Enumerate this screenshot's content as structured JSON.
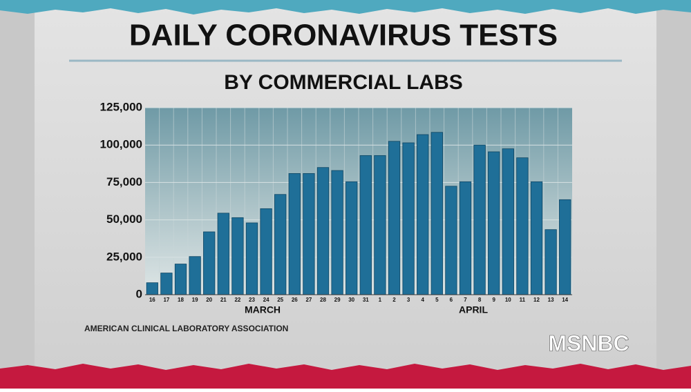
{
  "chart_data": {
    "type": "bar",
    "title": "DAILY CORONAVIRUS TESTS",
    "subtitle": "BY COMMERCIAL LABS",
    "categories": [
      "16",
      "17",
      "18",
      "19",
      "20",
      "21",
      "22",
      "23",
      "24",
      "25",
      "26",
      "27",
      "28",
      "29",
      "30",
      "31",
      "1",
      "2",
      "3",
      "4",
      "5",
      "6",
      "7",
      "8",
      "9",
      "10",
      "11",
      "12",
      "13",
      "14"
    ],
    "values": [
      8000,
      14500,
      20500,
      25500,
      42000,
      54500,
      51500,
      48000,
      57500,
      67000,
      81000,
      81000,
      85000,
      83000,
      75500,
      93000,
      93000,
      102500,
      101500,
      107000,
      108500,
      72500,
      75500,
      100000,
      95500,
      97500,
      91500,
      75500,
      43500,
      63500
    ],
    "month_labels": [
      "MARCH",
      "APRIL"
    ],
    "color": "#1f6f98",
    "ylim": [
      0,
      125000
    ],
    "yticks": [
      0,
      {
        "value": 25000,
        "label": "25,000"
      },
      {
        "value": 50000,
        "label": "50,000"
      },
      {
        "value": 75000,
        "label": "75,000"
      },
      {
        "value": 100000,
        "label": "100,000"
      },
      {
        "value": 125000,
        "label": "125,000"
      }
    ],
    "grid": true,
    "source": "AMERICAN CLINICAL LABORATORY ASSOCIATION"
  },
  "logo": "MSNBC"
}
